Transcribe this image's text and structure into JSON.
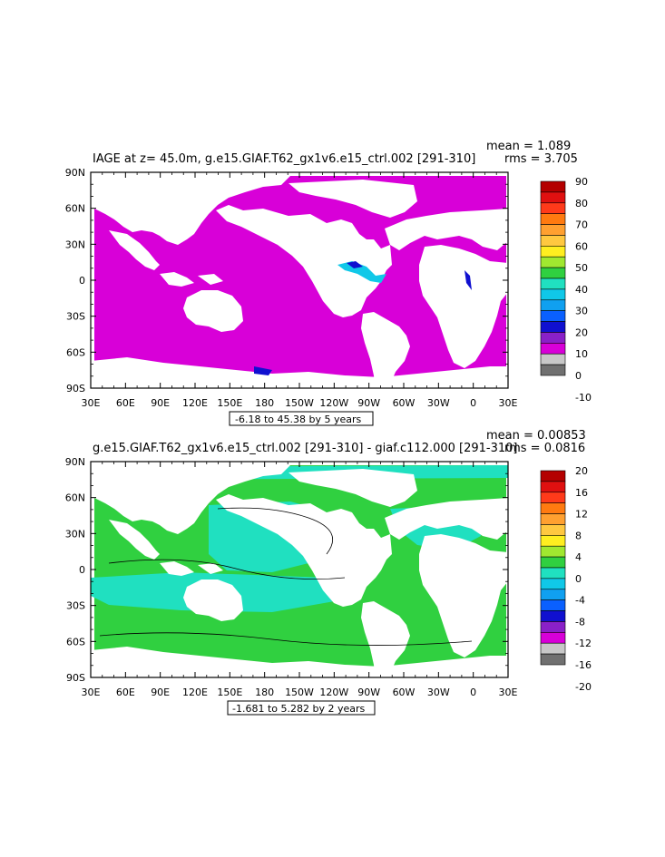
{
  "panels": [
    {
      "title": "IAGE at z=  45.0m, g.e15.GIAF.T62_gx1v6.e15_ctrl.002  [291-310]",
      "mean_label": "mean = 1.089",
      "rms_label": "rms = 3.705",
      "lat_ticks": [
        "90N",
        "60N",
        "30N",
        "0",
        "30S",
        "60S",
        "90S"
      ],
      "lon_ticks": [
        "30E",
        "60E",
        "90E",
        "120E",
        "150E",
        "180",
        "150W",
        "120W",
        "90W",
        "60W",
        "30W",
        "0",
        "30E"
      ],
      "range_label": "-6.18 to 45.38 by 5 years",
      "colorbar_labels": [
        "90",
        "80",
        "70",
        "60",
        "50",
        "40",
        "30",
        "20",
        "10",
        "0",
        "-10"
      ],
      "colorbar_colors": [
        "#b40000",
        "#e01010",
        "#ff3a1a",
        "#ff7a10",
        "#ffa030",
        "#ffc840",
        "#ffee20",
        "#a0e830",
        "#30d040",
        "#20e0c0",
        "#10c8e8",
        "#10a0f0",
        "#0a60ff",
        "#1010d0",
        "#8a20c8",
        "#d800d8",
        "#c8c8c8",
        "#707070"
      ],
      "ocean_color": "#d800d8",
      "accent_colors": [
        "#10c8e8",
        "#1010d0"
      ]
    },
    {
      "title": "g.e15.GIAF.T62_gx1v6.e15_ctrl.002  [291-310]  - giaf.c112.000  [291-310]",
      "mean_label": "mean = 0.00853",
      "rms_label": "rms = 0.0816",
      "lat_ticks": [
        "90N",
        "60N",
        "30N",
        "0",
        "30S",
        "60S",
        "90S"
      ],
      "lon_ticks": [
        "30E",
        "60E",
        "90E",
        "120E",
        "150E",
        "180",
        "150W",
        "120W",
        "90W",
        "60W",
        "30W",
        "0",
        "30E"
      ],
      "range_label": "-1.681 to 5.282 by 2 years",
      "colorbar_labels": [
        "20",
        "16",
        "12",
        "8",
        "4",
        "0",
        "-4",
        "-8",
        "-12",
        "-16",
        "-20"
      ],
      "colorbar_colors": [
        "#b40000",
        "#e01010",
        "#ff3a1a",
        "#ff7a10",
        "#ffa030",
        "#ffc840",
        "#ffee20",
        "#a0e830",
        "#30d040",
        "#20e0c0",
        "#10c8e8",
        "#10a0f0",
        "#0a60ff",
        "#1010d0",
        "#8a20c8",
        "#d800d8",
        "#c8c8c8",
        "#707070"
      ],
      "ocean_color": "#30d040",
      "accent_colors": [
        "#20e0c0"
      ]
    }
  ]
}
